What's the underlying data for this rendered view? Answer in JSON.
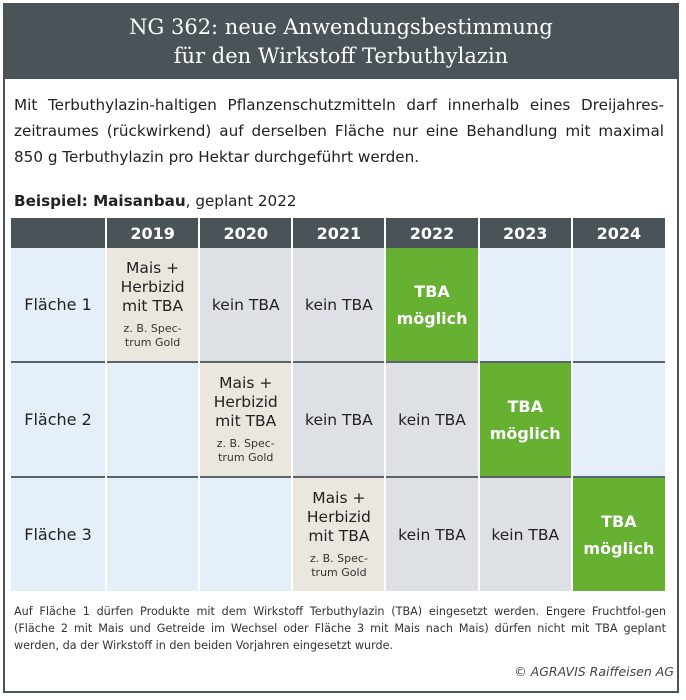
{
  "header": {
    "title_line1": "NG 362: neue Anwendungsbestimmung",
    "title_line2": "für den Wirkstoff Terbuthylazin"
  },
  "intro": "Mit Terbuthylazin-haltigen Pflanzenschutzmitteln darf innerhalb eines Dreijahres-zeitraumes (rückwirkend) auf derselben Fläche nur eine Behandlung mit maximal 850 g Terbuthylazin pro Hektar durchgeführt werden.",
  "example": {
    "bold": "Beispiel: Maisanbau",
    "rest": ", geplant 2022"
  },
  "table": {
    "years": [
      "2019",
      "2020",
      "2021",
      "2022",
      "2023",
      "2024"
    ],
    "cells": {
      "mais_lines": [
        "Mais +",
        "Herbizid",
        "mit TBA"
      ],
      "spectrum_lines": [
        "z. B. Spec-",
        "trum Gold"
      ],
      "kein_tba": "kein TBA",
      "tba_lines": [
        "TBA",
        "möglich"
      ]
    },
    "rows": [
      {
        "label": "Fläche 1"
      },
      {
        "label": "Fläche 2"
      },
      {
        "label": "Fläche 3"
      }
    ]
  },
  "footnote": "Auf Fläche 1 dürfen Produkte mit dem Wirkstoff Terbuthylazin (TBA) eingesetzt werden. Engere Fruchtfol-gen (Fläche 2 mit Mais und Getreide im Wechsel oder Fläche 3 mit Mais nach Mais) dürfen nicht mit TBA geplant werden, da der Wirkstoff in den beiden Vorjahren eingesetzt wurde.",
  "copyright": "© AGRAVIS Raiffeisen AG",
  "colors": {
    "header_bg": "#4a5358",
    "empty_cell": "#e5eff9",
    "kein_tba_cell": "#dde1e6",
    "mais_cell": "#ebe7df",
    "tba_moeglich_cell": "#66b032"
  }
}
